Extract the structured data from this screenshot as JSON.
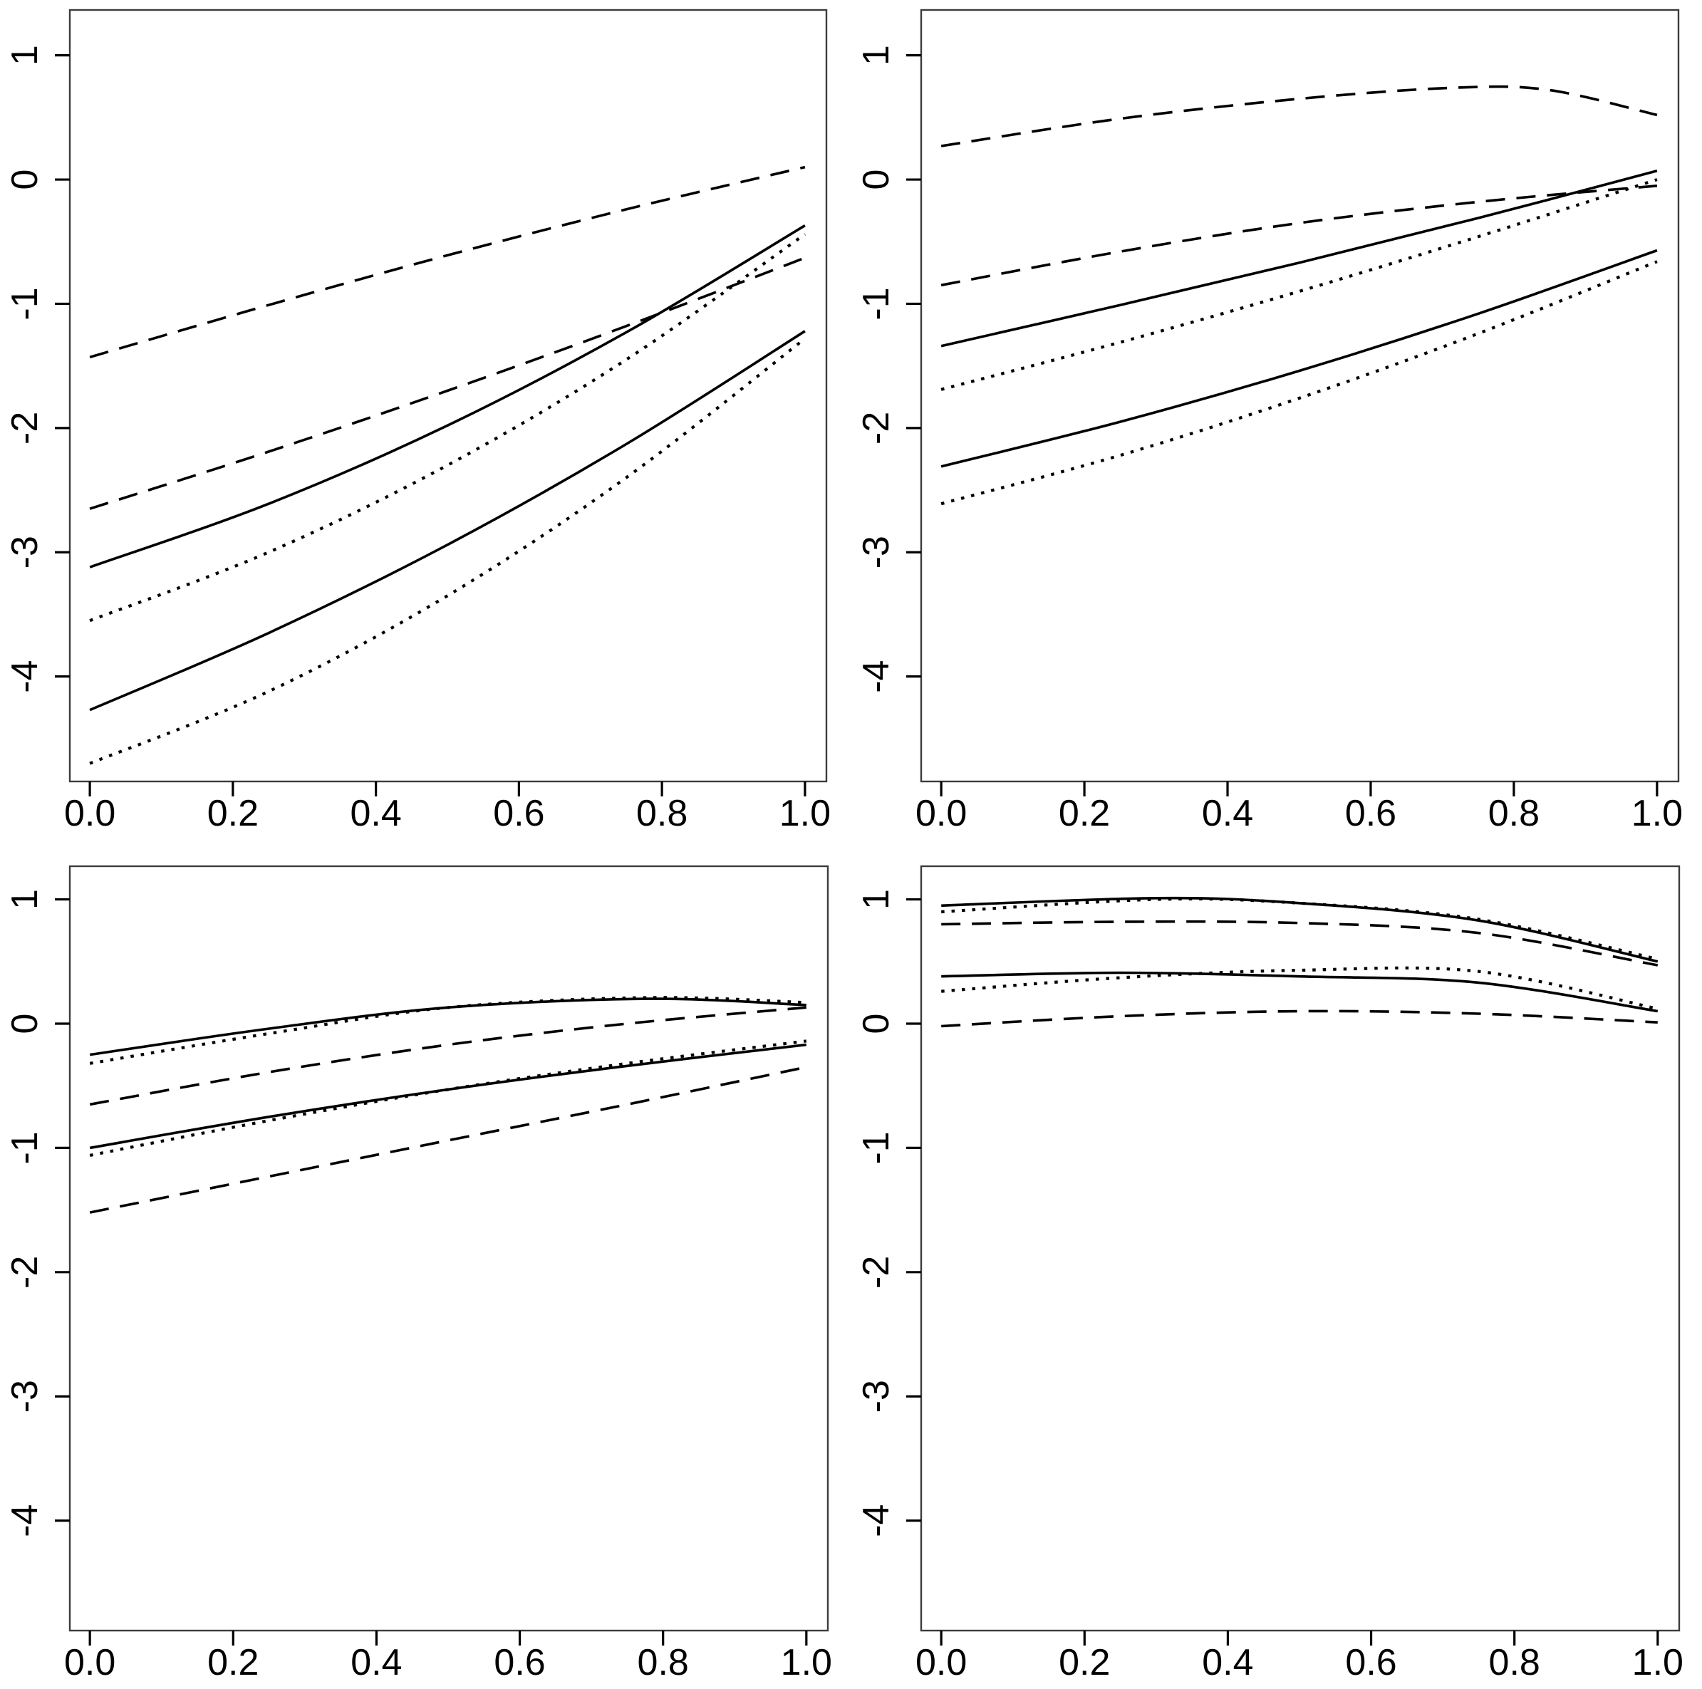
{
  "page": {
    "background": "#ffffff",
    "line_color": "#000000",
    "layout": "2x2-panel-line-plots"
  },
  "chart_data": [
    {
      "id": "top-left",
      "type": "line",
      "title": "",
      "xlabel": "",
      "ylabel": "",
      "xlim": [
        -0.028,
        1.03
      ],
      "ylim": [
        -4.845,
        1.365
      ],
      "x_ticks": [
        0,
        0.2,
        0.4,
        0.6,
        0.8,
        1.0
      ],
      "x_tick_labels": [
        "0.0",
        "0.2",
        "0.4",
        "0.6",
        "0.8",
        "1.0"
      ],
      "y_ticks": [
        1,
        0,
        -1,
        -2,
        -3,
        -4
      ],
      "y_tick_labels": [
        "1",
        "0",
        "-1",
        "-2",
        "-3",
        "-4"
      ],
      "grid": false,
      "legend": false,
      "line_color": "#000000",
      "series": [
        {
          "name": "dashed-upper",
          "line_style": "dashed",
          "x": [
            0,
            0.25,
            0.5,
            0.75,
            1
          ],
          "y": [
            -1.43,
            -1.01,
            -0.61,
            -0.24,
            0.1
          ]
        },
        {
          "name": "dashed-lower",
          "line_style": "dashed",
          "x": [
            0,
            0.25,
            0.5,
            0.75,
            1
          ],
          "y": [
            -2.65,
            -2.19,
            -1.7,
            -1.18,
            -0.63
          ]
        },
        {
          "name": "solid-upper",
          "line_style": "solid",
          "x": [
            0,
            0.25,
            0.5,
            0.75,
            1
          ],
          "y": [
            -3.12,
            -2.61,
            -1.98,
            -1.23,
            -0.37
          ]
        },
        {
          "name": "dotted-upper",
          "line_style": "dotted",
          "x": [
            0,
            0.25,
            0.5,
            0.75,
            1
          ],
          "y": [
            -3.55,
            -3.0,
            -2.3,
            -1.45,
            -0.44
          ]
        },
        {
          "name": "solid-lower",
          "line_style": "solid",
          "x": [
            0,
            0.25,
            0.5,
            0.75,
            1
          ],
          "y": [
            -4.27,
            -3.65,
            -2.94,
            -2.13,
            -1.22
          ]
        },
        {
          "name": "dotted-lower",
          "line_style": "dotted",
          "x": [
            0,
            0.25,
            0.5,
            0.75,
            1
          ],
          "y": [
            -4.7,
            -4.12,
            -3.35,
            -2.4,
            -1.28
          ]
        }
      ]
    },
    {
      "id": "top-right",
      "type": "line",
      "title": "",
      "xlabel": "",
      "ylabel": "",
      "xlim": [
        -0.028,
        1.03
      ],
      "ylim": [
        -4.845,
        1.365
      ],
      "x_ticks": [
        0,
        0.2,
        0.4,
        0.6,
        0.8,
        1.0
      ],
      "x_tick_labels": [
        "0.0",
        "0.2",
        "0.4",
        "0.6",
        "0.8",
        "1.0"
      ],
      "y_ticks": [
        1,
        0,
        -1,
        -2,
        -3,
        -4
      ],
      "y_tick_labels": [
        "1",
        "0",
        "-1",
        "-2",
        "-3",
        "-4"
      ],
      "grid": false,
      "legend": false,
      "line_color": "#000000",
      "series": [
        {
          "name": "dashed-upper",
          "line_style": "dashed",
          "x": [
            0,
            0.25,
            0.5,
            0.72,
            0.85,
            1
          ],
          "y": [
            0.27,
            0.49,
            0.65,
            0.74,
            0.72,
            0.52
          ]
        },
        {
          "name": "dashed-lower",
          "line_style": "dashed",
          "x": [
            0,
            0.25,
            0.5,
            0.75,
            1
          ],
          "y": [
            -0.85,
            -0.58,
            -0.35,
            -0.18,
            -0.05
          ]
        },
        {
          "name": "solid-upper",
          "line_style": "solid",
          "x": [
            0,
            0.25,
            0.5,
            0.75,
            1
          ],
          "y": [
            -1.34,
            -1.01,
            -0.67,
            -0.31,
            0.07
          ]
        },
        {
          "name": "dotted-upper",
          "line_style": "dotted",
          "x": [
            0,
            0.25,
            0.5,
            0.75,
            1
          ],
          "y": [
            -1.69,
            -1.31,
            -0.9,
            -0.46,
            0.0
          ]
        },
        {
          "name": "solid-lower",
          "line_style": "solid",
          "x": [
            0,
            0.25,
            0.5,
            0.75,
            1
          ],
          "y": [
            -2.31,
            -1.95,
            -1.54,
            -1.08,
            -0.57
          ]
        },
        {
          "name": "dotted-lower",
          "line_style": "dotted",
          "x": [
            0,
            0.25,
            0.5,
            0.75,
            1
          ],
          "y": [
            -2.61,
            -2.22,
            -1.76,
            -1.24,
            -0.66
          ]
        }
      ]
    },
    {
      "id": "bottom-left",
      "type": "line",
      "title": "",
      "xlabel": "",
      "ylabel": "",
      "xlim": [
        -0.028,
        1.03
      ],
      "ylim": [
        -4.885,
        1.267
      ],
      "x_ticks": [
        0,
        0.2,
        0.4,
        0.6,
        0.8,
        1.0
      ],
      "x_tick_labels": [
        "0.0",
        "0.2",
        "0.4",
        "0.6",
        "0.8",
        "1.0"
      ],
      "y_ticks": [
        1,
        0,
        -1,
        -2,
        -3,
        -4
      ],
      "y_tick_labels": [
        "1",
        "0",
        "-1",
        "-2",
        "-3",
        "-4"
      ],
      "grid": false,
      "legend": false,
      "line_color": "#000000",
      "series": [
        {
          "name": "solid-upper",
          "line_style": "solid",
          "x": [
            0,
            0.25,
            0.5,
            0.78,
            1
          ],
          "y": [
            -0.25,
            -0.04,
            0.13,
            0.2,
            0.15
          ]
        },
        {
          "name": "dotted-upper",
          "line_style": "dotted",
          "x": [
            0,
            0.25,
            0.5,
            0.78,
            1
          ],
          "y": [
            -0.32,
            -0.08,
            0.13,
            0.21,
            0.17
          ]
        },
        {
          "name": "dashed-upper",
          "line_style": "dashed",
          "x": [
            0,
            0.25,
            0.5,
            0.75,
            1
          ],
          "y": [
            -0.65,
            -0.39,
            -0.17,
            0.0,
            0.13
          ]
        },
        {
          "name": "solid-lower",
          "line_style": "solid",
          "x": [
            0,
            0.25,
            0.5,
            0.75,
            1
          ],
          "y": [
            -1.0,
            -0.75,
            -0.53,
            -0.34,
            -0.17
          ]
        },
        {
          "name": "dotted-lower",
          "line_style": "dotted",
          "x": [
            0,
            0.25,
            0.5,
            0.75,
            1
          ],
          "y": [
            -1.06,
            -0.78,
            -0.53,
            -0.32,
            -0.14
          ]
        },
        {
          "name": "dashed-lower",
          "line_style": "dashed",
          "x": [
            0,
            0.25,
            0.5,
            0.75,
            1
          ],
          "y": [
            -1.52,
            -1.23,
            -0.94,
            -0.65,
            -0.35
          ]
        }
      ]
    },
    {
      "id": "bottom-right",
      "type": "line",
      "title": "",
      "xlabel": "",
      "ylabel": "",
      "xlim": [
        -0.028,
        1.03
      ],
      "ylim": [
        -4.885,
        1.267
      ],
      "x_ticks": [
        0,
        0.2,
        0.4,
        0.6,
        0.8,
        1.0
      ],
      "x_tick_labels": [
        "0.0",
        "0.2",
        "0.4",
        "0.6",
        "0.8",
        "1.0"
      ],
      "y_ticks": [
        1,
        0,
        -1,
        -2,
        -3,
        -4
      ],
      "y_tick_labels": [
        "1",
        "0",
        "-1",
        "-2",
        "-3",
        "-4"
      ],
      "grid": false,
      "legend": false,
      "line_color": "#000000",
      "series": [
        {
          "name": "solid-upper",
          "line_style": "solid",
          "x": [
            0,
            0.3,
            0.5,
            0.75,
            1
          ],
          "y": [
            0.95,
            1.01,
            0.97,
            0.83,
            0.5
          ]
        },
        {
          "name": "dotted-upper",
          "line_style": "dotted",
          "x": [
            0,
            0.3,
            0.5,
            0.75,
            1
          ],
          "y": [
            0.9,
            1.0,
            0.97,
            0.84,
            0.52
          ]
        },
        {
          "name": "dashed-upper",
          "line_style": "dashed",
          "x": [
            0,
            0.25,
            0.5,
            0.75,
            1
          ],
          "y": [
            0.8,
            0.82,
            0.81,
            0.73,
            0.47
          ]
        },
        {
          "name": "solid-lower",
          "line_style": "solid",
          "x": [
            0,
            0.25,
            0.5,
            0.75,
            1
          ],
          "y": [
            0.38,
            0.41,
            0.38,
            0.33,
            0.1
          ]
        },
        {
          "name": "dotted-lower",
          "line_style": "dotted",
          "x": [
            0,
            0.25,
            0.5,
            0.75,
            1
          ],
          "y": [
            0.26,
            0.37,
            0.43,
            0.42,
            0.12
          ]
        },
        {
          "name": "dashed-lower",
          "line_style": "dashed",
          "x": [
            0,
            0.25,
            0.5,
            0.75,
            1
          ],
          "y": [
            -0.02,
            0.06,
            0.1,
            0.08,
            0.01
          ]
        }
      ]
    }
  ]
}
